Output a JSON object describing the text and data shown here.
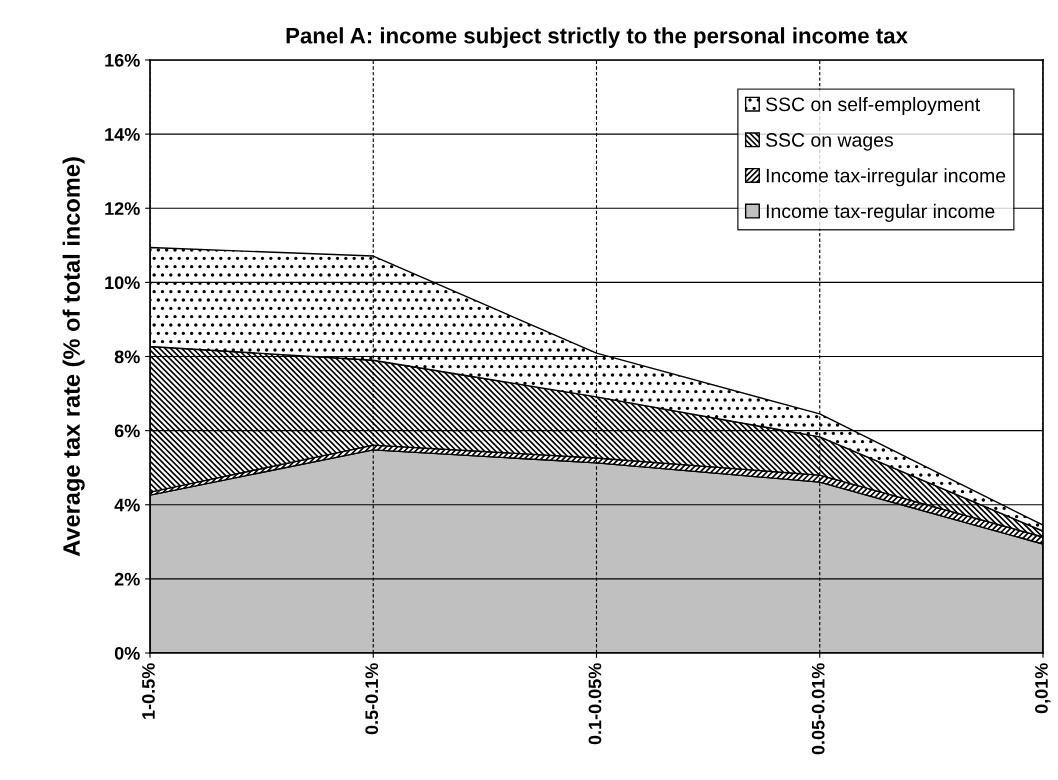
{
  "chart_data": {
    "type": "area",
    "stacked": true,
    "title": "Panel A: income subject strictly to the personal income tax",
    "ylabel": "Average tax rate (% of total income)",
    "categories": [
      "1-0.5%",
      "0.5-0.1%",
      "0.1-0.05%",
      "0.05-0.01%",
      "0,01%"
    ],
    "series": [
      {
        "name": "Income tax-regular income",
        "color": "#c0c0c0",
        "values": [
          4.26,
          5.48,
          5.13,
          4.61,
          2.94
        ]
      },
      {
        "name": "Income tax-irregular income",
        "color": "#000000",
        "values": [
          0.08,
          0.13,
          0.13,
          0.19,
          0.19
        ]
      },
      {
        "name": "SSC on wages",
        "color": "#000000",
        "values": [
          3.93,
          2.29,
          1.65,
          1.03,
          0.16
        ]
      },
      {
        "name": "SSC on self-employment",
        "color": "#000000",
        "values": [
          2.67,
          2.81,
          1.18,
          0.62,
          0.16
        ]
      }
    ],
    "ylim": [
      0,
      16
    ],
    "yticks": [
      {
        "value": 0,
        "label": "0%"
      },
      {
        "value": 2,
        "label": "2%"
      },
      {
        "value": 4,
        "label": "4%"
      },
      {
        "value": 6,
        "label": "6%"
      },
      {
        "value": 8,
        "label": "8%"
      },
      {
        "value": 10,
        "label": "10%"
      },
      {
        "value": 12,
        "label": "12%"
      },
      {
        "value": 14,
        "label": "14%"
      },
      {
        "value": 16,
        "label": "16%"
      }
    ],
    "grid": true,
    "legend": "top right"
  }
}
